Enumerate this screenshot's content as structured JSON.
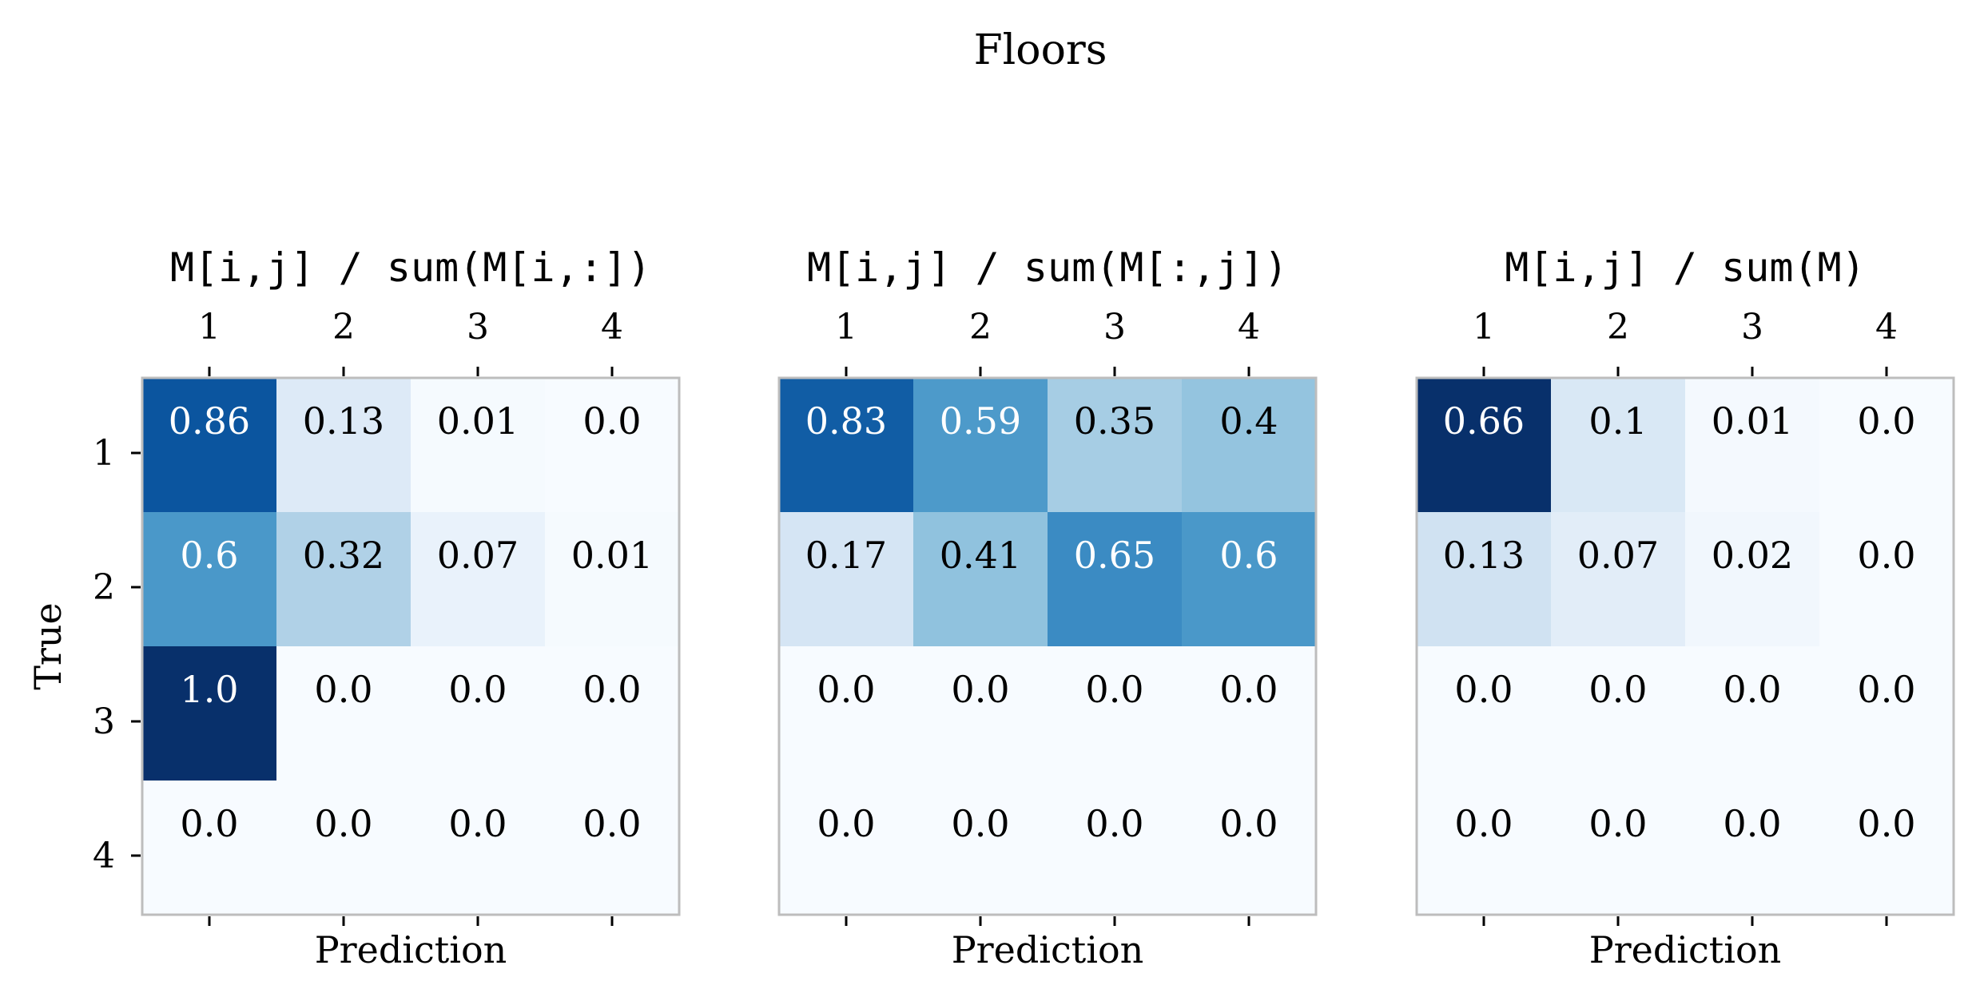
{
  "chart_data": {
    "type": "heatmap",
    "title": "Floors",
    "colormap": "Blues",
    "color_range": [
      0,
      1
    ],
    "grid": false,
    "panels": [
      {
        "title": "M[i,j] / sum(M[i,:])",
        "xlabel": "Prediction",
        "ylabel": "True",
        "x_ticks": [
          "1",
          "2",
          "3",
          "4"
        ],
        "y_ticks": [
          "1",
          "2",
          "3",
          "4"
        ],
        "values": [
          [
            0.86,
            0.13,
            0.01,
            0.0
          ],
          [
            0.6,
            0.32,
            0.07,
            0.01
          ],
          [
            1.0,
            0.0,
            0.0,
            0.0
          ],
          [
            0.0,
            0.0,
            0.0,
            0.0
          ]
        ],
        "labels": [
          [
            "0.86",
            "0.13",
            "0.01",
            "0.0"
          ],
          [
            "0.6",
            "0.32",
            "0.07",
            "0.01"
          ],
          [
            "1.0",
            "0.0",
            "0.0",
            "0.0"
          ],
          [
            "0.0",
            "0.0",
            "0.0",
            "0.0"
          ]
        ]
      },
      {
        "title": "M[i,j] / sum(M[:,j])",
        "xlabel": "Prediction",
        "ylabel": "",
        "x_ticks": [
          "1",
          "2",
          "3",
          "4"
        ],
        "y_ticks": [],
        "values": [
          [
            0.83,
            0.59,
            0.35,
            0.4
          ],
          [
            0.17,
            0.41,
            0.65,
            0.6
          ],
          [
            0.0,
            0.0,
            0.0,
            0.0
          ],
          [
            0.0,
            0.0,
            0.0,
            0.0
          ]
        ],
        "labels": [
          [
            "0.83",
            "0.59",
            "0.35",
            "0.4"
          ],
          [
            "0.17",
            "0.41",
            "0.65",
            "0.6"
          ],
          [
            "0.0",
            "0.0",
            "0.0",
            "0.0"
          ],
          [
            "0.0",
            "0.0",
            "0.0",
            "0.0"
          ]
        ]
      },
      {
        "title": "M[i,j] / sum(M)",
        "xlabel": "Prediction",
        "ylabel": "",
        "x_ticks": [
          "1",
          "2",
          "3",
          "4"
        ],
        "y_ticks": [],
        "color_range": [
          0,
          0.66
        ],
        "values": [
          [
            0.66,
            0.1,
            0.01,
            0.0
          ],
          [
            0.13,
            0.07,
            0.02,
            0.0
          ],
          [
            0.0,
            0.0,
            0.0,
            0.0
          ],
          [
            0.0,
            0.0,
            0.0,
            0.0
          ]
        ],
        "labels": [
          [
            "0.66",
            "0.1",
            "0.01",
            "0.0"
          ],
          [
            "0.13",
            "0.07",
            "0.02",
            "0.0"
          ],
          [
            "0.0",
            "0.0",
            "0.0",
            "0.0"
          ],
          [
            "0.0",
            "0.0",
            "0.0",
            "0.0"
          ]
        ]
      }
    ]
  }
}
